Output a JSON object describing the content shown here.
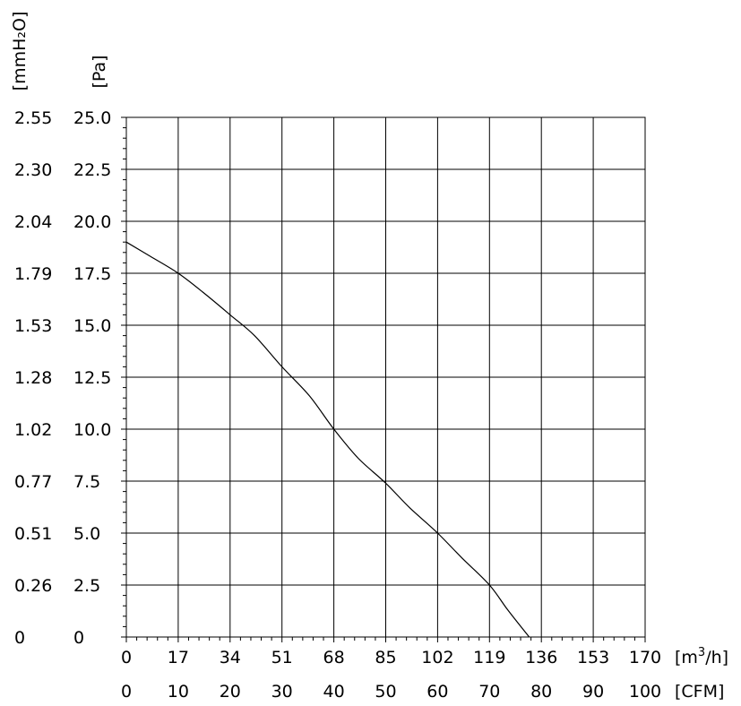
{
  "chart_data": {
    "type": "line",
    "title": "",
    "xlabel": "[m³/h]",
    "xlabel_secondary": "[CFM]",
    "ylabel": "[Pa]",
    "ylabel_secondary": "[mmH₂O]",
    "xlim": [
      0,
      170
    ],
    "ylim": [
      0,
      25.0
    ],
    "grid": true,
    "x_ticks": [
      0,
      17,
      34,
      51,
      68,
      85,
      102,
      119,
      136,
      153,
      170
    ],
    "x_ticks_secondary": [
      "0",
      "10",
      "20",
      "30",
      "40",
      "50",
      "60",
      "70",
      "80",
      "90",
      "100"
    ],
    "y_ticks": [
      "0",
      "2.5",
      "5.0",
      "7.5",
      "10.0",
      "12.5",
      "15.0",
      "17.5",
      "20.0",
      "22.5",
      "25.0"
    ],
    "y_ticks_secondary": [
      "0",
      "0.26",
      "0.51",
      "0.77",
      "1.02",
      "1.28",
      "1.53",
      "1.79",
      "2.04",
      "2.30",
      "2.55"
    ],
    "series": [
      {
        "x": [
          0,
          8,
          17,
          25,
          34,
          42,
          51,
          60,
          68,
          76,
          85,
          93,
          102,
          110,
          119,
          125,
          132
        ],
        "y": [
          19.0,
          18.3,
          17.5,
          16.6,
          15.5,
          14.5,
          13.0,
          11.6,
          10.0,
          8.6,
          7.4,
          6.2,
          5.0,
          3.8,
          2.5,
          1.3,
          0.0
        ]
      }
    ]
  }
}
